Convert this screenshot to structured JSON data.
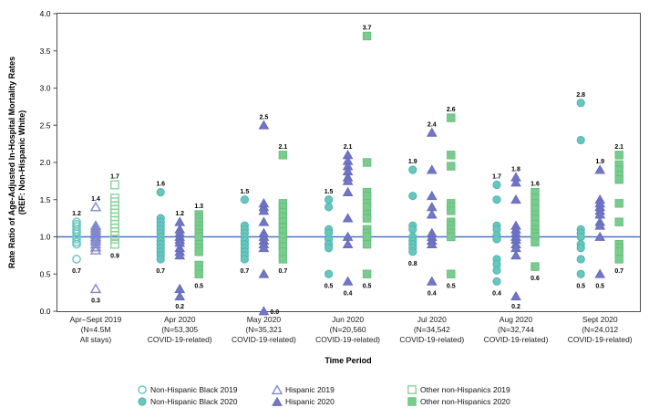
{
  "figure": {
    "y_axis_title_line1": "Rate Ratio of Age-Adjusted In-Hospital Mortality Rates",
    "y_axis_title_line2": "(REF: Non-Hispanic White)",
    "x_axis_title": "Time Period"
  },
  "colors": {
    "teal": {
      "open": "#67c7bf",
      "fill": "#67c7bf",
      "stroke": "#4fb5ad"
    },
    "purple": {
      "open": "#8187ce",
      "fill": "#7277c4",
      "stroke": "#666bbd"
    },
    "green": {
      "open": "#8ad29c",
      "fill": "#79cb8e",
      "stroke": "#66c07d"
    },
    "ref_line": "#4a72c8",
    "axis": "#4d4d4d",
    "text": "#000000"
  },
  "legend": {
    "items": [
      {
        "label": "Non-Hispanic Black 2019",
        "series": "black",
        "open": true
      },
      {
        "label": "Hispanic 2019",
        "series": "hispanic",
        "open": true
      },
      {
        "label": "Other non-Hispanics 2019",
        "series": "other",
        "open": true
      },
      {
        "label": "Non-Hispanic Black 2020",
        "series": "black",
        "open": false
      },
      {
        "label": "Hispanic 2020",
        "series": "hispanic",
        "open": false
      },
      {
        "label": "Other non-Hispanics 2020",
        "series": "other",
        "open": false
      }
    ]
  },
  "chart_data": {
    "type": "scatter",
    "title": "",
    "xlabel": "Time Period",
    "ylabel": "Rate Ratio of Age-Adjusted In-Hospital Mortality Rates (REF: Non-Hispanic White)",
    "ylim": [
      0.0,
      4.0
    ],
    "ytick_labels": [
      "0.0",
      "0.5",
      "1.0",
      "1.5",
      "2.0",
      "2.5",
      "3.0",
      "3.5",
      "4.0"
    ],
    "ref_line_y": 1.0,
    "grid": false,
    "legend_position": "bottom",
    "series_meta": {
      "black": {
        "name": "Non-Hispanic Black",
        "marker": "circle",
        "color_key": "teal"
      },
      "hispanic": {
        "name": "Hispanic",
        "marker": "triangle",
        "color_key": "purple"
      },
      "other": {
        "name": "Other non-Hispanics",
        "marker": "square",
        "color_key": "green"
      }
    },
    "groups": [
      {
        "year": "2019",
        "category_lines": [
          "Apr–Sept 2019",
          "(N=4.5M",
          "All stays)"
        ],
        "black": {
          "values": [
            1.2,
            1.17,
            1.14,
            1.1,
            1.07,
            1.04,
            1.0,
            0.97,
            0.93,
            0.9,
            0.7
          ],
          "max_label": "1.2",
          "min_label": "0.7"
        },
        "hispanic": {
          "values": [
            1.4,
            1.15,
            1.12,
            1.09,
            1.06,
            1.03,
            1.0,
            0.97,
            0.94,
            0.9,
            0.86,
            0.82,
            0.3
          ],
          "max_label": "1.4",
          "min_label": "0.3"
        },
        "other": {
          "values": [
            1.7,
            1.52,
            1.47,
            1.42,
            1.37,
            1.32,
            1.27,
            1.22,
            1.17,
            1.12,
            1.07,
            1.02,
            0.97,
            0.9
          ],
          "max_label": "1.7",
          "min_label": "0.9"
        }
      },
      {
        "year": "2020",
        "category_lines": [
          "Apr 2020",
          "(N=53,305",
          "COVID-19-related)"
        ],
        "black": {
          "values": [
            1.6,
            1.25,
            1.2,
            1.15,
            1.1,
            1.05,
            1.0,
            0.95,
            0.9,
            0.85,
            0.8,
            0.75,
            0.7
          ],
          "max_label": "1.6",
          "min_label": "0.7"
        },
        "hispanic": {
          "values": [
            1.2,
            1.1,
            1.05,
            1.0,
            0.96,
            0.92,
            0.85,
            0.8,
            0.75,
            0.3,
            0.2
          ],
          "max_label": "1.2",
          "min_label": "0.2"
        },
        "other": {
          "values": [
            1.3,
            1.25,
            1.2,
            1.15,
            1.1,
            1.05,
            1.0,
            0.9,
            0.85,
            0.8,
            0.62,
            0.56,
            0.5
          ],
          "max_label": "1.3",
          "min_label": "0.5"
        }
      },
      {
        "year": "2020",
        "category_lines": [
          "May 2020",
          "(N=35,321",
          "COVID-19-related)"
        ],
        "black": {
          "values": [
            1.5,
            1.15,
            1.1,
            1.05,
            1.0,
            0.95,
            0.9,
            0.85,
            0.8,
            0.75,
            0.7
          ],
          "max_label": "1.5",
          "min_label": "0.7"
        },
        "hispanic": {
          "values": [
            2.5,
            1.45,
            1.4,
            1.35,
            1.2,
            1.05,
            1.0,
            0.95,
            0.9,
            0.85,
            0.5,
            0.0
          ],
          "max_label": "2.5",
          "min_label": "0.0"
        },
        "other": {
          "values": [
            2.1,
            1.45,
            1.4,
            1.33,
            1.27,
            1.2,
            1.13,
            1.07,
            1.0,
            0.93,
            0.87,
            0.8,
            0.7
          ],
          "max_label": "2.1",
          "min_label": "0.7"
        }
      },
      {
        "year": "2020",
        "category_lines": [
          "Jun 2020",
          "(N=20,560",
          "COVID-19-related)"
        ],
        "black": {
          "values": [
            1.5,
            1.4,
            1.1,
            1.05,
            0.97,
            0.9,
            0.85,
            0.5
          ],
          "max_label": "1.5",
          "min_label": "0.5"
        },
        "hispanic": {
          "values": [
            2.1,
            2.02,
            1.95,
            1.88,
            1.8,
            1.75,
            1.6,
            1.25,
            1.0,
            0.9,
            0.4
          ],
          "max_label": "2.1",
          "min_label": "0.4"
        },
        "other": {
          "values": [
            3.7,
            2.0,
            1.6,
            1.55,
            1.45,
            1.4,
            1.3,
            1.25,
            1.1,
            1.05,
            1.0,
            0.9,
            0.5
          ],
          "max_label": "3.7",
          "min_label": "0.5"
        }
      },
      {
        "year": "2020",
        "category_lines": [
          "Jul 2020",
          "(N=34,542",
          "COVID-19-related)"
        ],
        "black": {
          "values": [
            1.9,
            1.55,
            1.15,
            1.1,
            1.0,
            0.95,
            0.9,
            0.85,
            0.8
          ],
          "max_label": "1.9",
          "min_label": "0.8"
        },
        "hispanic": {
          "values": [
            2.4,
            1.9,
            1.55,
            1.4,
            1.3,
            1.05,
            1.0,
            0.95,
            0.9,
            0.4
          ],
          "max_label": "2.4",
          "min_label": "0.4"
        },
        "other": {
          "values": [
            2.6,
            2.1,
            1.95,
            1.45,
            1.4,
            1.35,
            1.2,
            1.15,
            1.1,
            1.05,
            1.0,
            0.5
          ],
          "max_label": "2.6",
          "min_label": "0.5"
        }
      },
      {
        "year": "2020",
        "category_lines": [
          "Aug 2020",
          "(N=32,744",
          "COVID-19-related)"
        ],
        "black": {
          "values": [
            1.7,
            1.5,
            1.15,
            1.1,
            1.02,
            0.97,
            0.7,
            0.63,
            0.55,
            0.4
          ],
          "max_label": "1.7",
          "min_label": "0.4"
        },
        "hispanic": {
          "values": [
            1.8,
            1.73,
            1.5,
            1.15,
            1.1,
            1.05,
            1.0,
            0.96,
            0.9,
            0.85,
            0.75,
            0.2
          ],
          "max_label": "1.8",
          "min_label": "0.2"
        },
        "other": {
          "values": [
            1.6,
            1.52,
            1.45,
            1.38,
            1.3,
            1.24,
            1.17,
            1.1,
            1.05,
            1.0,
            0.93,
            0.6
          ],
          "max_label": "1.6",
          "min_label": "0.6"
        }
      },
      {
        "year": "2020",
        "category_lines": [
          "Sept 2020",
          "(N=24,012",
          "COVID-19-related)"
        ],
        "black": {
          "values": [
            2.8,
            2.3,
            1.1,
            1.05,
            1.0,
            0.9,
            0.85,
            0.7,
            0.5
          ],
          "max_label": "2.8",
          "min_label": "0.5"
        },
        "hispanic": {
          "values": [
            1.9,
            1.5,
            1.45,
            1.4,
            1.35,
            1.3,
            1.2,
            1.15,
            1.0,
            0.5
          ],
          "max_label": "1.9",
          "min_label": "0.5"
        },
        "other": {
          "values": [
            2.1,
            1.97,
            1.9,
            1.83,
            1.77,
            1.45,
            1.2,
            0.9,
            0.85,
            0.8,
            0.7
          ],
          "max_label": "2.1",
          "min_label": "0.7"
        }
      }
    ]
  }
}
